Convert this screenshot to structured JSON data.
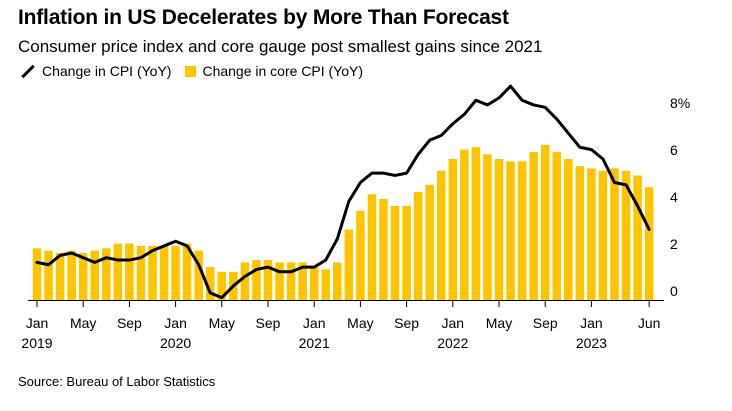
{
  "title": "Inflation in US Decelerates by More Than Forecast",
  "subtitle": "Consumer price index and core gauge post smallest gains since 2021",
  "legend": {
    "line_label": "Change in CPI (YoY)",
    "bar_label": "Change in core CPI (YoY)"
  },
  "source": "Source: Bureau of Labor Statistics",
  "colors": {
    "bar": "#ffc400",
    "line": "#000000",
    "axis": "#000000"
  },
  "chart_data": {
    "type": "bar",
    "overlay_type": "line",
    "x": [
      "2019-01",
      "2019-02",
      "2019-03",
      "2019-04",
      "2019-05",
      "2019-06",
      "2019-07",
      "2019-08",
      "2019-09",
      "2019-10",
      "2019-11",
      "2019-12",
      "2020-01",
      "2020-02",
      "2020-03",
      "2020-04",
      "2020-05",
      "2020-06",
      "2020-07",
      "2020-08",
      "2020-09",
      "2020-10",
      "2020-11",
      "2020-12",
      "2021-01",
      "2021-02",
      "2021-03",
      "2021-04",
      "2021-05",
      "2021-06",
      "2021-07",
      "2021-08",
      "2021-09",
      "2021-10",
      "2021-11",
      "2021-12",
      "2022-01",
      "2022-02",
      "2022-03",
      "2022-04",
      "2022-05",
      "2022-06",
      "2022-07",
      "2022-08",
      "2022-09",
      "2022-10",
      "2022-11",
      "2022-12",
      "2023-01",
      "2023-02",
      "2023-03",
      "2023-04",
      "2023-05",
      "2023-06"
    ],
    "series": [
      {
        "name": "Change in core CPI (YoY)",
        "type": "bar",
        "values": [
          2.2,
          2.1,
          2.0,
          2.1,
          2.0,
          2.1,
          2.2,
          2.4,
          2.4,
          2.3,
          2.3,
          2.3,
          2.3,
          2.4,
          2.1,
          1.4,
          1.2,
          1.2,
          1.6,
          1.7,
          1.7,
          1.6,
          1.6,
          1.6,
          1.4,
          1.3,
          1.6,
          3.0,
          3.8,
          4.5,
          4.3,
          4.0,
          4.0,
          4.6,
          4.9,
          5.5,
          6.0,
          6.4,
          6.5,
          6.2,
          6.0,
          5.9,
          5.9,
          6.3,
          6.6,
          6.3,
          6.0,
          5.7,
          5.6,
          5.5,
          5.6,
          5.5,
          5.3,
          4.8
        ]
      },
      {
        "name": "Change in CPI (YoY)",
        "type": "line",
        "values": [
          1.6,
          1.5,
          1.9,
          2.0,
          1.8,
          1.6,
          1.8,
          1.7,
          1.7,
          1.8,
          2.1,
          2.3,
          2.5,
          2.3,
          1.5,
          0.3,
          0.1,
          0.6,
          1.0,
          1.3,
          1.4,
          1.2,
          1.2,
          1.4,
          1.4,
          1.7,
          2.6,
          4.2,
          5.0,
          5.4,
          5.4,
          5.3,
          5.4,
          6.2,
          6.8,
          7.0,
          7.5,
          7.9,
          8.5,
          8.3,
          8.6,
          9.1,
          8.5,
          8.3,
          8.2,
          7.7,
          7.1,
          6.5,
          6.4,
          6.0,
          5.0,
          4.9,
          4.0,
          3.0
        ]
      }
    ],
    "x_tick_labels": [
      {
        "month": "Jan",
        "year": "2019"
      },
      {
        "month": "May",
        "year": ""
      },
      {
        "month": "Sep",
        "year": ""
      },
      {
        "month": "Jan",
        "year": "2020"
      },
      {
        "month": "May",
        "year": ""
      },
      {
        "month": "Sep",
        "year": ""
      },
      {
        "month": "Jan",
        "year": "2021"
      },
      {
        "month": "May",
        "year": ""
      },
      {
        "month": "Sep",
        "year": ""
      },
      {
        "month": "Jan",
        "year": "2022"
      },
      {
        "month": "May",
        "year": ""
      },
      {
        "month": "Sep",
        "year": ""
      },
      {
        "month": "Jan",
        "year": "2023"
      },
      {
        "month": "Jun",
        "year": ""
      }
    ],
    "x_tick_index": [
      0,
      4,
      8,
      12,
      16,
      20,
      24,
      28,
      32,
      36,
      40,
      44,
      48,
      53
    ],
    "y_ticks": [
      0,
      2,
      4,
      6,
      8
    ],
    "y_tick_labels": [
      "0",
      "2",
      "4",
      "6",
      "8%"
    ],
    "ylim": [
      0,
      9
    ],
    "y_axis_side": "right",
    "grid": false
  }
}
